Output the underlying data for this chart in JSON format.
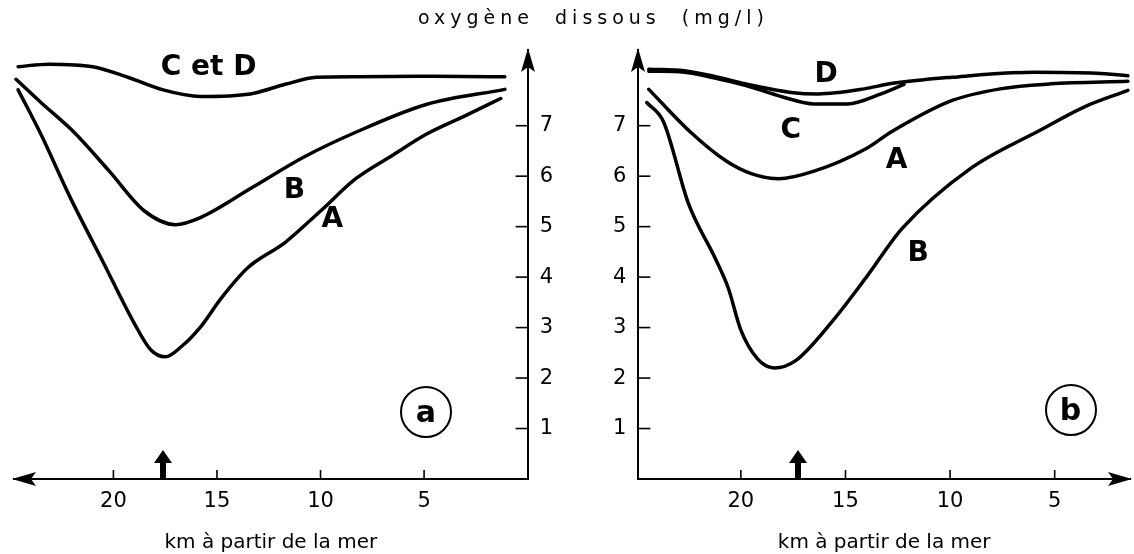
{
  "chart_data": [
    {
      "type": "line",
      "ylabel": "oxygène dissous (mg/l)",
      "xlabel": "km à partir de la mer",
      "xlim": [
        24.8,
        0
      ],
      "ylim": [
        0,
        8.5
      ],
      "xticks": [
        20,
        15,
        10,
        5
      ],
      "yticks": [
        1,
        2,
        3,
        4,
        5,
        6,
        7
      ],
      "series": [
        {
          "name": "C et D",
          "color": "#000000",
          "x": [
            24.6,
            23.1,
            21.0,
            19.3,
            17.6,
            15.8,
            13.4,
            11.7,
            10.2,
            8.3,
            5.0,
            1.1
          ],
          "values": [
            8.17,
            8.22,
            8.17,
            7.96,
            7.71,
            7.58,
            7.63,
            7.82,
            7.96,
            7.97,
            7.98,
            7.97
          ]
        },
        {
          "name": "B",
          "color": "#000000",
          "x": [
            24.7,
            23.5,
            21.9,
            20.2,
            18.5,
            17.0,
            15.8,
            13.4,
            10.8,
            8.3,
            4.9,
            1.1
          ],
          "values": [
            7.92,
            7.46,
            6.87,
            6.1,
            5.31,
            5.04,
            5.18,
            5.75,
            6.38,
            6.87,
            7.42,
            7.72
          ]
        },
        {
          "name": "A",
          "color": "#000000",
          "x": [
            24.6,
            23.5,
            22.1,
            20.5,
            19.0,
            18.2,
            17.5,
            16.7,
            15.8,
            14.8,
            13.5,
            11.7,
            10.0,
            8.3,
            6.5,
            4.9,
            3.0,
            1.3
          ],
          "values": [
            7.71,
            6.83,
            5.59,
            4.3,
            3.09,
            2.56,
            2.42,
            2.63,
            3.01,
            3.58,
            4.19,
            4.69,
            5.31,
            5.95,
            6.42,
            6.83,
            7.2,
            7.54
          ]
        }
      ],
      "annotations": [
        "a"
      ]
    },
    {
      "type": "line",
      "xlabel": "km à partir de la mer",
      "xlim": [
        24.9,
        1.4
      ],
      "ylim": [
        0,
        8.5
      ],
      "xticks": [
        20,
        15,
        10,
        5
      ],
      "yticks": [
        1,
        2,
        3,
        4,
        5,
        6,
        7
      ],
      "series": [
        {
          "name": "D",
          "color": "#000000",
          "x": [
            24.4,
            22.7,
            21.3,
            19.8,
            17.6,
            16.3,
            14.1,
            12.9,
            9.9,
            6.0,
            3.0,
            1.5
          ],
          "values": [
            8.12,
            8.09,
            7.98,
            7.83,
            7.66,
            7.63,
            7.73,
            7.83,
            7.96,
            8.06,
            8.04,
            7.99
          ]
        },
        {
          "name": "C",
          "color": "#000000",
          "x": [
            24.4,
            22.7,
            21.3,
            19.8,
            18.0,
            16.5,
            14.9,
            13.3,
            12.2
          ],
          "values": [
            8.08,
            8.06,
            7.95,
            7.8,
            7.57,
            7.43,
            7.43,
            7.63,
            7.82
          ]
        },
        {
          "name": "A",
          "color": "#000000",
          "x": [
            24.4,
            22.4,
            20.7,
            19.5,
            18.2,
            16.5,
            14.0,
            12.8,
            9.9,
            7.6,
            5.2,
            1.5
          ],
          "values": [
            7.72,
            6.87,
            6.3,
            6.05,
            5.95,
            6.1,
            6.55,
            6.88,
            7.5,
            7.73,
            7.83,
            7.88
          ]
        },
        {
          "name": "B",
          "color": "#000000",
          "x": [
            24.5,
            23.7,
            22.5,
            21.2,
            20.6,
            20.0,
            19.2,
            18.4,
            17.4,
            15.7,
            14.0,
            12.3,
            9.0,
            5.7,
            3.6,
            1.5
          ],
          "values": [
            7.46,
            7.08,
            5.45,
            4.35,
            3.78,
            2.95,
            2.38,
            2.2,
            2.34,
            3.09,
            4.0,
            4.96,
            6.16,
            6.91,
            7.37,
            7.7
          ]
        }
      ],
      "annotations": [
        "b"
      ]
    }
  ]
}
